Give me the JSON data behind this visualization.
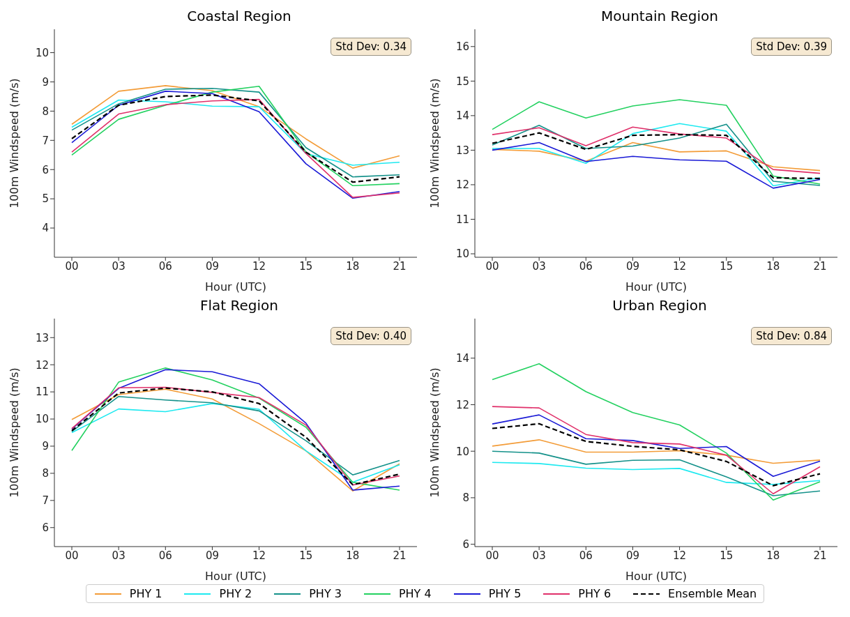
{
  "chart_data": [
    {
      "type": "line",
      "title": "Coastal Region",
      "xlabel": "Hour (UTC)",
      "ylabel": "100m Windspeed (m/s)",
      "categories": [
        "00",
        "03",
        "06",
        "09",
        "12",
        "15",
        "18",
        "21"
      ],
      "ylim": [
        3,
        10.8
      ],
      "yticks": [
        4,
        5,
        6,
        7,
        8,
        9,
        10
      ],
      "annotations": [
        "Std Dev: 0.34"
      ],
      "legend": "bottom",
      "series": [
        {
          "name": "PHY 1",
          "color": "#f39c38",
          "values": [
            7.55,
            8.68,
            8.87,
            8.7,
            8.15,
            7.05,
            6.05,
            6.47
          ]
        },
        {
          "name": "PHY 2",
          "color": "#1de9f0",
          "values": [
            7.45,
            8.38,
            8.32,
            8.17,
            8.15,
            6.55,
            6.15,
            6.25
          ]
        },
        {
          "name": "PHY 3",
          "color": "#14918a",
          "values": [
            7.35,
            8.25,
            8.75,
            8.78,
            8.65,
            6.75,
            5.75,
            5.82
          ]
        },
        {
          "name": "PHY 4",
          "color": "#23d160",
          "values": [
            6.5,
            7.72,
            8.2,
            8.65,
            8.85,
            6.6,
            5.45,
            5.52
          ]
        },
        {
          "name": "PHY 5",
          "color": "#1a1ad6",
          "values": [
            6.92,
            8.2,
            8.68,
            8.6,
            7.98,
            6.2,
            5.02,
            5.25
          ]
        },
        {
          "name": "PHY 6",
          "color": "#e0306a",
          "values": [
            6.6,
            7.9,
            8.22,
            8.35,
            8.4,
            6.55,
            5.05,
            5.2
          ]
        },
        {
          "name": "Ensemble Mean",
          "color": "#000000",
          "line_style": "dashed",
          "values": [
            7.06,
            8.2,
            8.5,
            8.55,
            8.35,
            6.6,
            5.57,
            5.75
          ]
        }
      ]
    },
    {
      "type": "line",
      "title": "Mountain Region",
      "xlabel": "Hour (UTC)",
      "ylabel": "100m Windspeed (m/s)",
      "categories": [
        "00",
        "03",
        "06",
        "09",
        "12",
        "15",
        "18",
        "21"
      ],
      "ylim": [
        9.9,
        16.5
      ],
      "yticks": [
        10,
        11,
        12,
        13,
        14,
        15,
        16
      ],
      "annotations": [
        "Std Dev: 0.39"
      ],
      "series": [
        {
          "color": "#f39c38",
          "values": [
            13.02,
            12.97,
            12.68,
            13.22,
            12.95,
            12.98,
            12.52,
            12.41
          ]
        },
        {
          "color": "#1de9f0",
          "values": [
            13.05,
            13.05,
            12.62,
            13.48,
            13.77,
            13.55,
            11.97,
            12.2
          ]
        },
        {
          "color": "#14918a",
          "values": [
            13.15,
            13.72,
            13.05,
            13.12,
            13.35,
            13.75,
            12.1,
            11.98
          ]
        },
        {
          "color": "#23d160",
          "values": [
            13.6,
            14.4,
            13.93,
            14.28,
            14.46,
            14.3,
            12.25,
            12.02
          ]
        },
        {
          "color": "#1a1ad6",
          "values": [
            13.0,
            13.22,
            12.67,
            12.82,
            12.72,
            12.68,
            11.9,
            12.15
          ]
        },
        {
          "color": "#e0306a",
          "values": [
            13.45,
            13.65,
            13.13,
            13.67,
            13.47,
            13.35,
            12.44,
            12.33
          ]
        },
        {
          "color": "#000000",
          "line_style": "dashed",
          "values": [
            13.2,
            13.5,
            13.02,
            13.43,
            13.45,
            13.43,
            12.2,
            12.18
          ]
        }
      ]
    },
    {
      "type": "line",
      "title": "Flat Region",
      "xlabel": "Hour (UTC)",
      "ylabel": "100m Windspeed (m/s)",
      "categories": [
        "00",
        "03",
        "06",
        "09",
        "12",
        "15",
        "18",
        "21"
      ],
      "ylim": [
        5.3,
        13.7
      ],
      "yticks": [
        6,
        7,
        8,
        9,
        10,
        11,
        12,
        13
      ],
      "annotations": [
        "Std Dev: 0.40"
      ],
      "series": [
        {
          "color": "#f39c38",
          "values": [
            9.98,
            10.9,
            11.1,
            10.74,
            9.83,
            8.83,
            7.35,
            8.35
          ]
        },
        {
          "color": "#1de9f0",
          "values": [
            9.5,
            10.37,
            10.27,
            10.57,
            10.36,
            8.83,
            7.67,
            8.31
          ]
        },
        {
          "color": "#14918a",
          "values": [
            9.54,
            10.83,
            10.7,
            10.6,
            10.3,
            9.2,
            7.94,
            8.47
          ]
        },
        {
          "color": "#23d160",
          "values": [
            8.84,
            11.36,
            11.88,
            11.44,
            10.77,
            9.7,
            7.67,
            7.38
          ]
        },
        {
          "color": "#1a1ad6",
          "values": [
            9.63,
            11.13,
            11.82,
            11.74,
            11.3,
            9.85,
            7.38,
            7.53
          ]
        },
        {
          "color": "#e0306a",
          "values": [
            9.65,
            11.15,
            11.17,
            10.98,
            10.79,
            9.78,
            7.57,
            7.9
          ]
        },
        {
          "color": "#000000",
          "line_style": "dashed",
          "values": [
            9.57,
            10.96,
            11.14,
            11.0,
            10.57,
            9.33,
            7.58,
            7.97
          ]
        }
      ]
    },
    {
      "type": "line",
      "title": "Urban Region",
      "xlabel": "Hour (UTC)",
      "ylabel": "100m Windspeed (m/s)",
      "categories": [
        "00",
        "03",
        "06",
        "09",
        "12",
        "15",
        "18",
        "21"
      ],
      "ylim": [
        5.9,
        15.7
      ],
      "yticks": [
        6,
        8,
        10,
        12,
        14
      ],
      "annotations": [
        "Std Dev: 0.84"
      ],
      "series": [
        {
          "color": "#f39c38",
          "values": [
            10.22,
            10.49,
            9.96,
            9.96,
            10.02,
            9.83,
            9.48,
            9.62
          ]
        },
        {
          "color": "#1de9f0",
          "values": [
            9.52,
            9.47,
            9.27,
            9.21,
            9.26,
            8.66,
            8.57,
            8.74
          ]
        },
        {
          "color": "#14918a",
          "values": [
            10.0,
            9.92,
            9.44,
            9.61,
            9.63,
            8.9,
            8.09,
            8.29
          ]
        },
        {
          "color": "#23d160",
          "values": [
            13.08,
            13.76,
            12.56,
            11.66,
            11.13,
            9.92,
            7.9,
            8.69
          ]
        },
        {
          "color": "#1a1ad6",
          "values": [
            11.17,
            11.56,
            10.54,
            10.46,
            10.12,
            10.2,
            8.92,
            9.57
          ]
        },
        {
          "color": "#e0306a",
          "values": [
            11.92,
            11.86,
            10.72,
            10.37,
            10.31,
            9.83,
            8.17,
            9.33
          ]
        },
        {
          "color": "#000000",
          "line_style": "dashed",
          "values": [
            10.98,
            11.18,
            10.42,
            10.21,
            10.06,
            9.56,
            8.52,
            9.03
          ]
        }
      ]
    }
  ]
}
